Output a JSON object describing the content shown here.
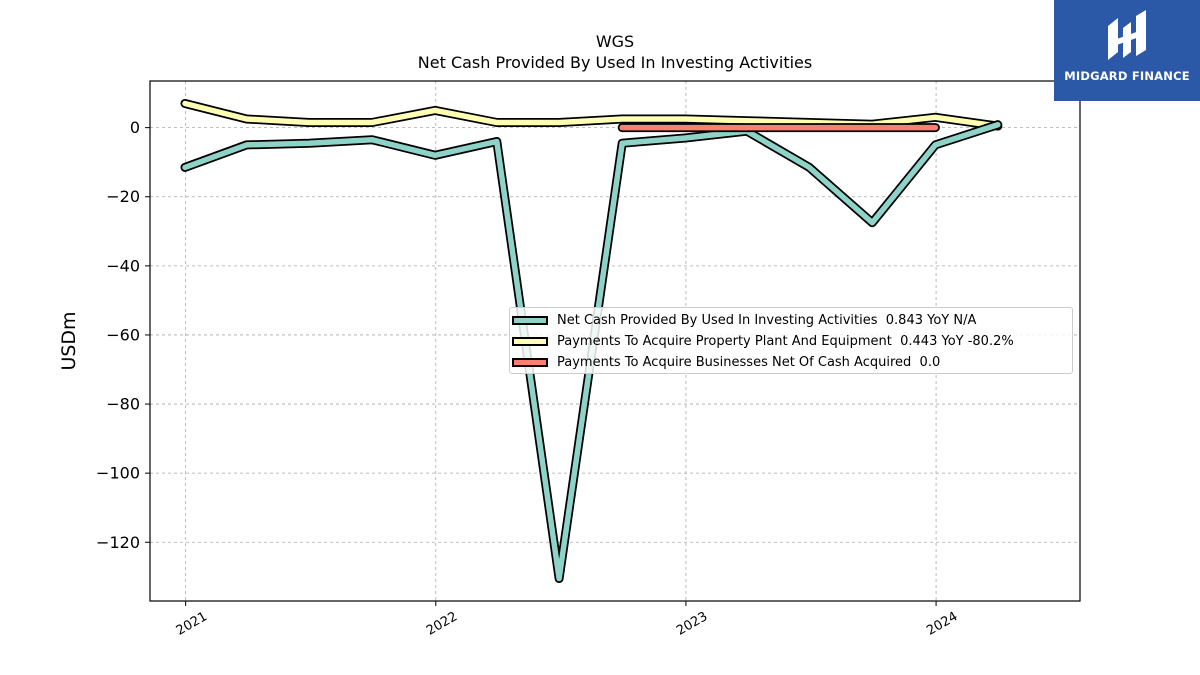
{
  "chart_data": {
    "type": "line",
    "title": "WGS",
    "subtitle": "Net Cash Provided By Used In Investing Activities",
    "ylabel": "USDm",
    "xlabel": "",
    "xlim": [
      "2020-11-10",
      "2024-07-29"
    ],
    "ylim": [
      -137,
      13.5
    ],
    "x_ticks": [
      "2021",
      "2022",
      "2023",
      "2024"
    ],
    "y_ticks": [
      0,
      -20,
      -40,
      -60,
      -80,
      -100,
      -120
    ],
    "grid": true,
    "legend_position": "center-right",
    "series": [
      {
        "name": "Net Cash Provided By Used In Investing Activities",
        "legend_suffix": "0.843 YoY N/A",
        "color": "#8dd3c7",
        "x": [
          "2020-12-31",
          "2021-03-31",
          "2021-06-30",
          "2021-09-30",
          "2021-12-31",
          "2022-03-31",
          "2022-06-30",
          "2022-09-30",
          "2022-12-31",
          "2023-03-31",
          "2023-06-30",
          "2023-09-30",
          "2023-12-31",
          "2024-03-31"
        ],
        "values": [
          -11.5,
          -5.0,
          -4.5,
          -3.5,
          -8.0,
          -4.0,
          -130.5,
          -4.5,
          -3.0,
          -1.0,
          -11.5,
          -27.5,
          -5.0,
          0.843
        ]
      },
      {
        "name": "Payments To Acquire Property Plant And Equipment",
        "legend_suffix": "0.443 YoY -80.2%",
        "color": "#ffffb3",
        "x": [
          "2020-12-31",
          "2021-03-31",
          "2021-06-30",
          "2021-09-30",
          "2021-12-31",
          "2022-03-31",
          "2022-06-30",
          "2022-09-30",
          "2022-12-31",
          "2023-03-31",
          "2023-06-30",
          "2023-09-30",
          "2023-12-31",
          "2024-03-31"
        ],
        "values": [
          7.0,
          2.5,
          1.5,
          1.5,
          5.0,
          1.5,
          1.5,
          2.5,
          2.5,
          2.0,
          1.5,
          1.0,
          3.0,
          0.443
        ]
      },
      {
        "name": "Payments To Acquire Businesses Net Of Cash Acquired",
        "legend_suffix": "0.0",
        "color": "#fb8072",
        "x": [
          "2022-09-30",
          "2022-12-31",
          "2023-03-31",
          "2023-06-30",
          "2023-09-30",
          "2023-12-31"
        ],
        "values": [
          0.0,
          0.0,
          0.0,
          0.0,
          0.0,
          0.0
        ]
      }
    ]
  },
  "logo": {
    "text": "MIDGARD FINANCE",
    "bg_color": "#2b59a8"
  }
}
